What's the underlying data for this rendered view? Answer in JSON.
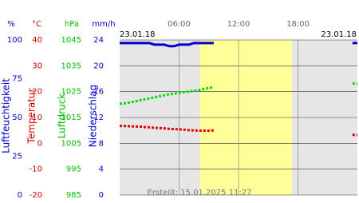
{
  "chart_data": {
    "type": "line",
    "date_left": "23.01.18",
    "date_right": "23.01.18",
    "footer": "Erstellt: 15.01.2025 11:27",
    "xlim": [
      0,
      24
    ],
    "xticks": [
      {
        "value": 6,
        "label": "06:00"
      },
      {
        "value": 12,
        "label": "12:00"
      },
      {
        "value": 18,
        "label": "18:00"
      }
    ],
    "daylight": [
      8.1,
      17.4
    ],
    "axes": [
      {
        "unit": "%",
        "label": "Luftfeuchtigkeit",
        "color": "#0000cc",
        "ylim": [
          0,
          100
        ],
        "yticks": [
          100,
          75,
          50,
          25,
          0
        ]
      },
      {
        "unit": "°C",
        "label": "Temperatur",
        "color": "#cc0000",
        "ylim": [
          -20,
          40
        ],
        "yticks": [
          40,
          30,
          20,
          10,
          0,
          -10,
          -20
        ]
      },
      {
        "unit": "hPa",
        "label": "Luftdruck",
        "color": "#00bb00",
        "ylim": [
          985,
          1045
        ],
        "yticks": [
          1045,
          1035,
          1025,
          1015,
          1005,
          995,
          985
        ]
      },
      {
        "unit": "mm/h",
        "label": "Niederschlag",
        "color": "#0000cc",
        "ylim": [
          0,
          24
        ],
        "yticks": [
          24,
          20,
          16,
          12,
          8,
          4,
          0
        ]
      }
    ],
    "x": [
      0,
      0.5,
      1,
      1.5,
      2,
      2.5,
      3,
      3.5,
      4,
      4.5,
      5,
      5.5,
      6,
      6.5,
      7,
      7.5,
      8,
      8.5,
      9,
      9.5,
      16,
      23.5,
      24
    ],
    "series": [
      {
        "axis": 0,
        "color": "#0000cc",
        "values": [
          98,
          98,
          98,
          98,
          98,
          98,
          98,
          97,
          97,
          97,
          96,
          96,
          97,
          97,
          97,
          98,
          98,
          98,
          98,
          98,
          null,
          98,
          98
        ]
      },
      {
        "axis": 1,
        "color": "#dd0000",
        "values": [
          6.7,
          6.7,
          6.6,
          6.5,
          6.5,
          6.3,
          6.2,
          6.0,
          5.9,
          5.8,
          5.6,
          5.5,
          5.4,
          5.3,
          5.1,
          5.0,
          4.9,
          4.9,
          4.9,
          5.0,
          null,
          3.3,
          3.2
        ]
      },
      {
        "axis": 2,
        "color": "#00dd00",
        "values": [
          1020.3,
          1020.5,
          1020.8,
          1021.2,
          1021.6,
          1022.0,
          1022.4,
          1022.8,
          1023.2,
          1023.6,
          1024.0,
          1024.2,
          1024.5,
          1024.8,
          1025.0,
          1025.3,
          1025.6,
          1026.0,
          1026.4,
          1026.8,
          null,
          1028.2,
          1028.0
        ]
      }
    ]
  }
}
